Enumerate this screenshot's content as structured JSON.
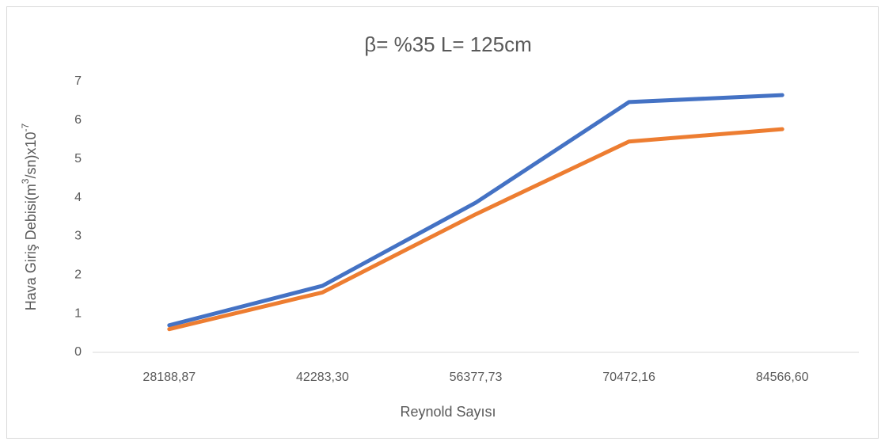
{
  "chart_data": {
    "type": "line",
    "title": "β= %35 L= 125cm",
    "x_label": "Reynold Sayısı",
    "y_label": [
      "Hava Giriş Debisi(m",
      "3",
      "/sn)x10",
      "-7"
    ],
    "categories": [
      "28188,87",
      "42283,30",
      "56377,73",
      "70472,16",
      "84566,60"
    ],
    "series": [
      {
        "color": "#4472c4",
        "values": [
          0.7,
          1.72,
          3.87,
          6.47,
          6.65
        ]
      },
      {
        "color": "#ed7d31",
        "values": [
          0.6,
          1.55,
          3.57,
          5.45,
          5.77
        ]
      }
    ],
    "ylim": [
      0,
      7
    ],
    "yticks": [
      0,
      1,
      2,
      3,
      4,
      5,
      6,
      7
    ],
    "grid": false
  }
}
